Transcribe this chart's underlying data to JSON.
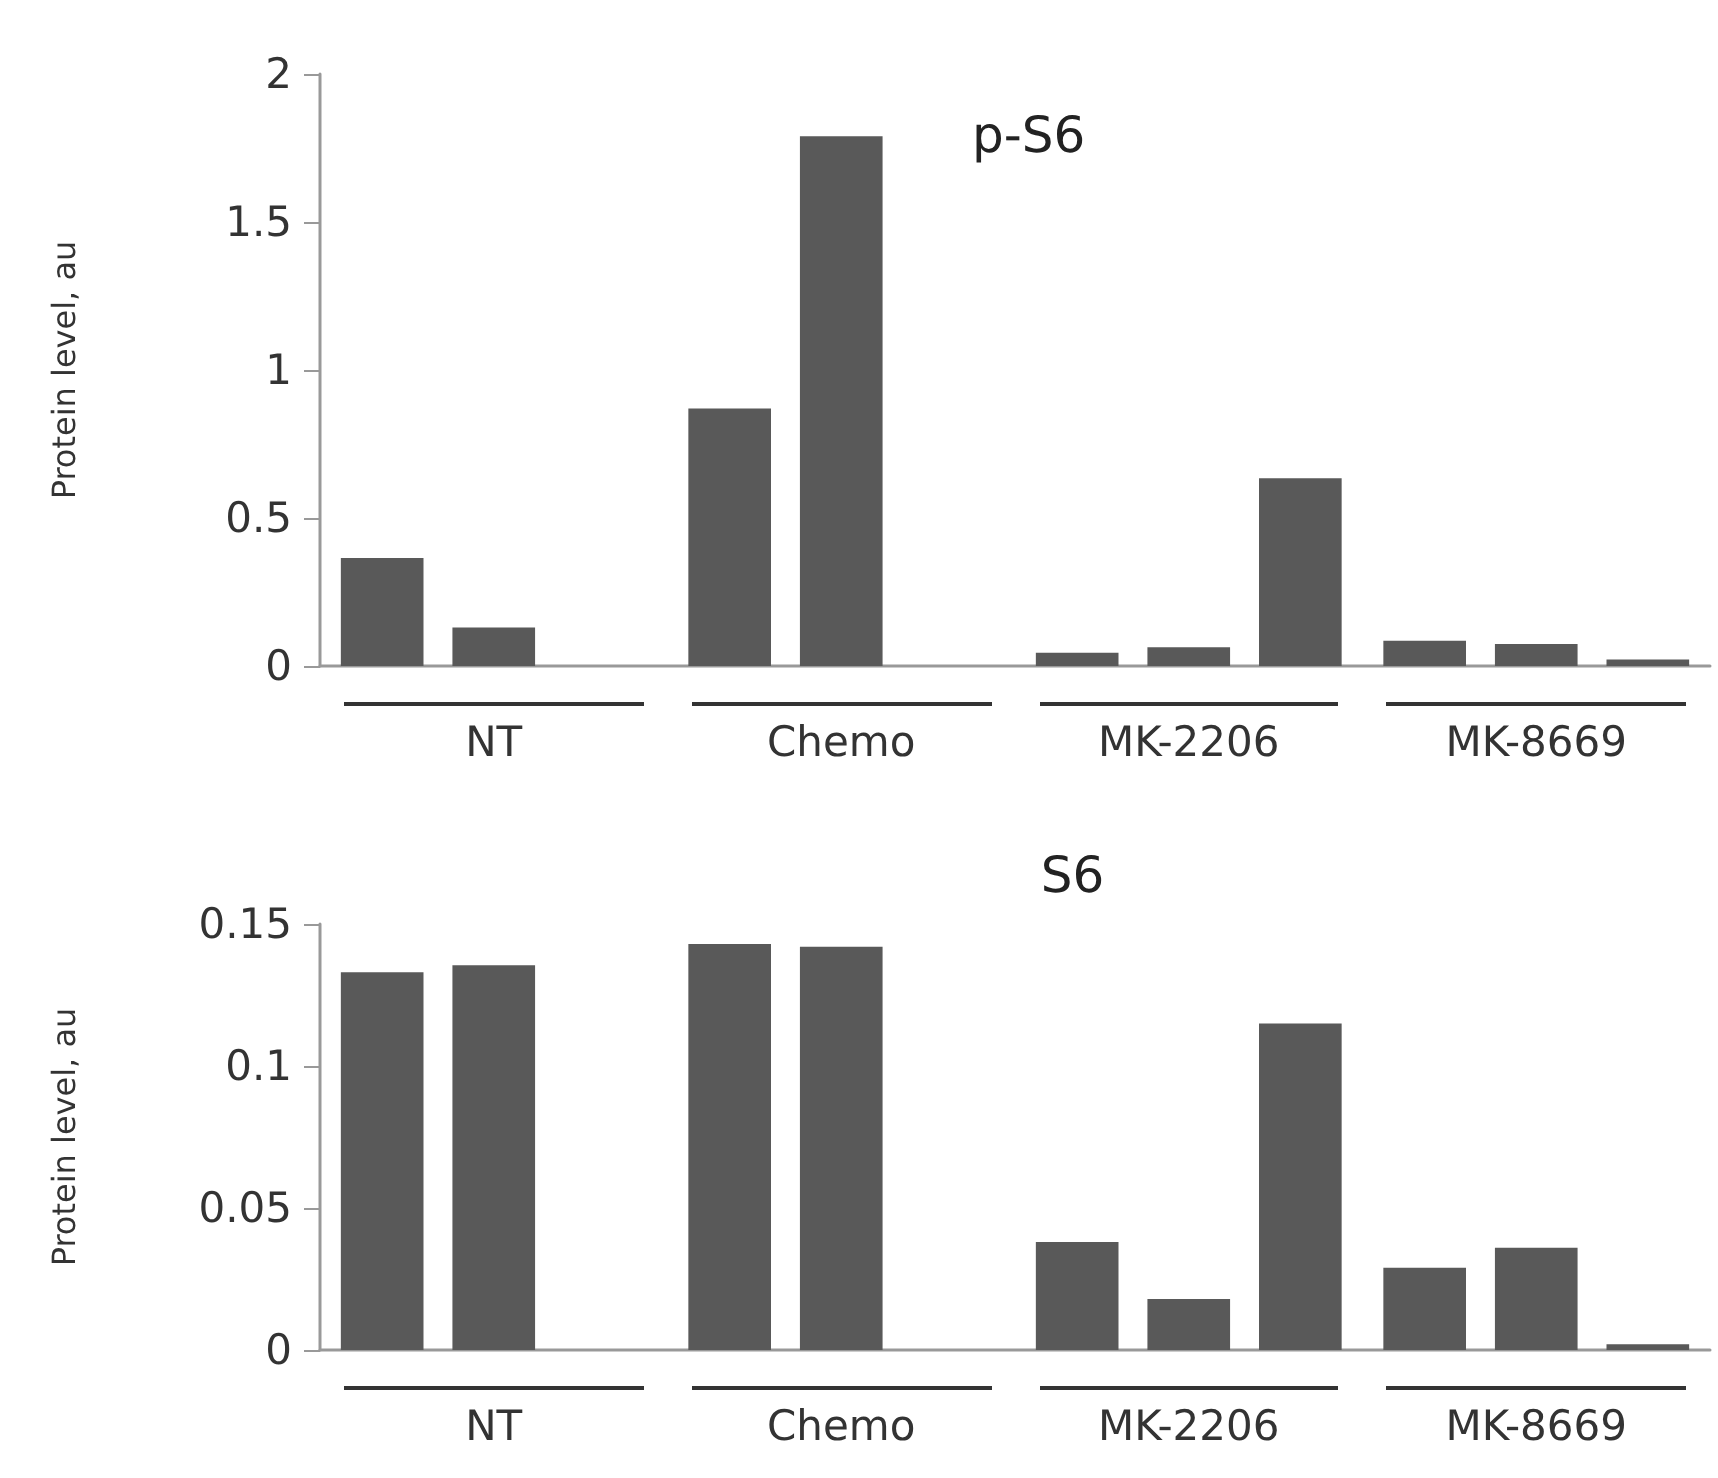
{
  "chart_data": [
    {
      "type": "bar",
      "title": "p-S6",
      "ylabel": "Protein level, au",
      "categories": [
        "NT",
        "Chemo",
        "MK-2206",
        "MK-8669"
      ],
      "series": [
        {
          "color": "#595959",
          "values": [
            0.365,
            0.87,
            0.045,
            0.085
          ]
        },
        {
          "color": "#595959",
          "values": [
            0.13,
            1.79,
            0.063,
            0.074
          ]
        },
        {
          "color": "#595959",
          "values": [
            null,
            null,
            0.634,
            0.022
          ]
        }
      ],
      "ylim": [
        0,
        2
      ],
      "yticks": [
        0,
        0.5,
        1,
        1.5,
        2
      ],
      "grid": false
    },
    {
      "type": "bar",
      "title": "S6",
      "ylabel": "Protein level, au",
      "categories": [
        "NT",
        "Chemo",
        "MK-2206",
        "MK-8669"
      ],
      "series": [
        {
          "color": "#595959",
          "values": [
            0.133,
            0.143,
            0.038,
            0.029
          ]
        },
        {
          "color": "#595959",
          "values": [
            0.1355,
            0.142,
            0.018,
            0.036
          ]
        },
        {
          "color": "#595959",
          "values": [
            null,
            null,
            0.115,
            0.002
          ]
        }
      ],
      "ylim": [
        0,
        0.15
      ],
      "yticks": [
        0,
        0.05,
        0.1,
        0.15
      ],
      "grid": false
    }
  ]
}
